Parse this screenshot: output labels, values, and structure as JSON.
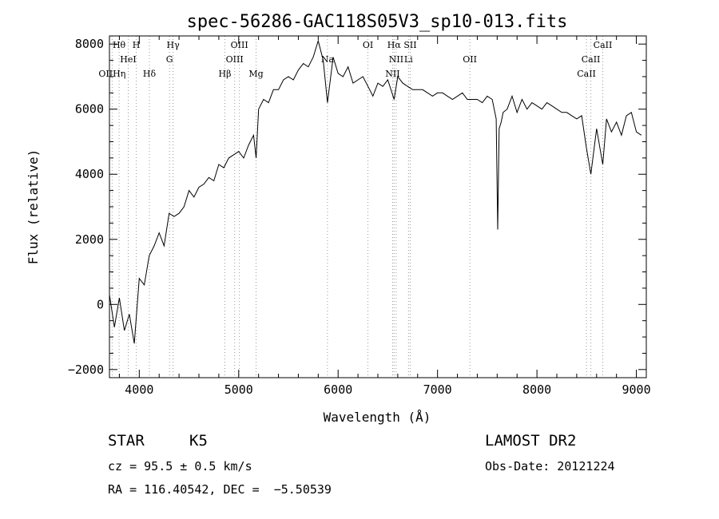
{
  "chart_data": {
    "type": "line",
    "title": "spec-56286-GAC118S05V3_sp10-013.fits",
    "xlabel": "Wavelength (Å)",
    "ylabel": "Flux (relative)",
    "xlim": [
      3700,
      9100
    ],
    "ylim": [
      -2250,
      8250
    ],
    "x_ticks": [
      4000,
      5000,
      6000,
      7000,
      8000,
      9000
    ],
    "y_ticks": [
      -2000,
      0,
      2000,
      4000,
      6000,
      8000
    ],
    "x_tick_labels": [
      "4000",
      "5000",
      "6000",
      "7000",
      "8000",
      "9000"
    ],
    "y_tick_labels": [
      "−2000",
      "0",
      "2000",
      "4000",
      "6000",
      "8000"
    ],
    "grid": false,
    "series": [
      {
        "color": "#000000",
        "x": [
          3700,
          3750,
          3800,
          3850,
          3900,
          3950,
          4000,
          4050,
          4100,
          4150,
          4200,
          4250,
          4300,
          4350,
          4400,
          4450,
          4500,
          4550,
          4600,
          4650,
          4700,
          4750,
          4800,
          4850,
          4900,
          4950,
          5000,
          5050,
          5100,
          5150,
          5175,
          5200,
          5250,
          5300,
          5350,
          5400,
          5450,
          5500,
          5550,
          5600,
          5650,
          5700,
          5750,
          5800,
          5850,
          5893,
          5950,
          6000,
          6050,
          6100,
          6150,
          6200,
          6250,
          6300,
          6350,
          6400,
          6450,
          6500,
          6563,
          6600,
          6650,
          6700,
          6750,
          6800,
          6850,
          6900,
          6950,
          7000,
          7050,
          7100,
          7150,
          7200,
          7250,
          7300,
          7350,
          7400,
          7450,
          7500,
          7550,
          7590,
          7605,
          7620,
          7640,
          7660,
          7700,
          7750,
          7800,
          7850,
          7900,
          7950,
          8000,
          8050,
          8100,
          8150,
          8200,
          8250,
          8300,
          8350,
          8400,
          8450,
          8498,
          8542,
          8600,
          8662,
          8700,
          8750,
          8800,
          8850,
          8900,
          8950,
          9000,
          9050
        ],
        "y": [
          300,
          -700,
          200,
          -800,
          -300,
          -1200,
          800,
          600,
          1500,
          1800,
          2200,
          1800,
          2800,
          2700,
          2800,
          3000,
          3500,
          3300,
          3600,
          3700,
          3900,
          3800,
          4300,
          4200,
          4500,
          4600,
          4700,
          4500,
          4900,
          5200,
          4500,
          6000,
          6300,
          6200,
          6600,
          6600,
          6900,
          7000,
          6900,
          7200,
          7400,
          7300,
          7600,
          8100,
          7500,
          6200,
          7600,
          7100,
          7000,
          7300,
          6800,
          6900,
          7000,
          6700,
          6400,
          6800,
          6700,
          6900,
          6300,
          7000,
          6800,
          6700,
          6600,
          6600,
          6600,
          6500,
          6400,
          6500,
          6500,
          6400,
          6300,
          6400,
          6500,
          6300,
          6300,
          6300,
          6200,
          6400,
          6300,
          5700,
          2300,
          5400,
          5600,
          5900,
          6000,
          6400,
          5900,
          6300,
          6000,
          6200,
          6100,
          6000,
          6200,
          6100,
          6000,
          5900,
          5900,
          5800,
          5700,
          5800,
          4800,
          4000,
          5400,
          4300,
          5700,
          5300,
          5600,
          5200,
          5800,
          5900,
          5300,
          5200
        ]
      }
    ],
    "lines": [
      {
        "label": "Hθ",
        "x": 3797,
        "row": 0
      },
      {
        "label": "H",
        "x": 3970,
        "row": 0
      },
      {
        "label": "Hγ",
        "x": 4340,
        "row": 0
      },
      {
        "label": "OIII",
        "x": 5007,
        "row": 0
      },
      {
        "label": "OI",
        "x": 6300,
        "row": 0
      },
      {
        "label": "Hα",
        "x": 6563,
        "row": 0
      },
      {
        "label": "SII",
        "x": 6725,
        "row": 0
      },
      {
        "label": "CaII",
        "x": 8662,
        "row": 0
      },
      {
        "label": "HeI",
        "x": 3889,
        "row": 1
      },
      {
        "label": "G",
        "x": 4304,
        "row": 1
      },
      {
        "label": "OIII",
        "x": 4959,
        "row": 1
      },
      {
        "label": "Na",
        "x": 5893,
        "row": 1
      },
      {
        "label": "NII",
        "x": 6584,
        "row": 1
      },
      {
        "label": "Li",
        "x": 6708,
        "row": 1
      },
      {
        "label": "OII",
        "x": 7325,
        "row": 1
      },
      {
        "label": "CaII",
        "x": 8542,
        "row": 1
      },
      {
        "label": "OIIHη",
        "x": 3727,
        "row": 2
      },
      {
        "label": "Hδ",
        "x": 4102,
        "row": 2
      },
      {
        "label": "Hβ",
        "x": 4861,
        "row": 2
      },
      {
        "label": "Mg",
        "x": 5175,
        "row": 2
      },
      {
        "label": "NII",
        "x": 6548,
        "row": 2
      },
      {
        "label": "CaII",
        "x": 8498,
        "row": 2
      }
    ]
  },
  "info": {
    "class": "STAR",
    "subclass": "K5",
    "survey": "LAMOST DR2",
    "cz": "cz = 95.5 ± 0.5 km/s",
    "obs_date": "Obs-Date: 20121224",
    "coords": "RA = 116.40542, DEC =  −5.50539"
  }
}
